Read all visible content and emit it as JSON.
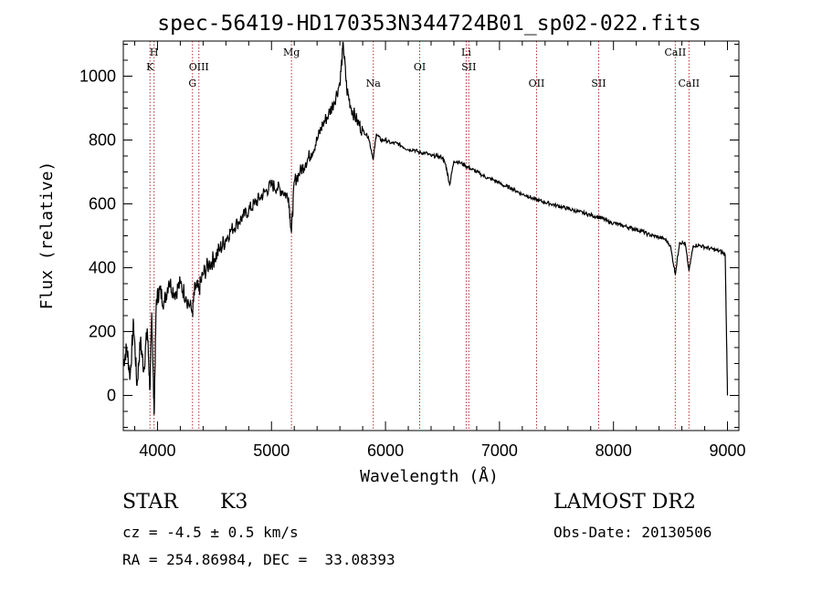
{
  "chart_data": {
    "type": "line",
    "title": "spec-56419-HD170353N344724B01_sp02-022.fits",
    "xlabel": "Wavelength (Å)",
    "ylabel": "Flux (relative)",
    "xlim": [
      3700,
      9100
    ],
    "ylim": [
      -110,
      1110
    ],
    "xticks": [
      4000,
      5000,
      6000,
      7000,
      8000,
      9000
    ],
    "yticks": [
      0,
      200,
      400,
      600,
      800,
      1000
    ],
    "grid": false,
    "line_color": "#000000",
    "marker_color": "#b03030",
    "lines": [
      {
        "label": "H",
        "x": 3970,
        "row": 0
      },
      {
        "label": "K",
        "x": 3934,
        "row": 1
      },
      {
        "label": "OIII",
        "x": 4363,
        "row": 1
      },
      {
        "label": "G",
        "x": 4307,
        "row": 2
      },
      {
        "label": "Mg",
        "x": 5175,
        "row": 0
      },
      {
        "label": "Na",
        "x": 5893,
        "row": 2
      },
      {
        "label": "OI",
        "x": 6300,
        "row": 1
      },
      {
        "label": "Li",
        "x": 6708,
        "row": 0
      },
      {
        "label": "SII",
        "x": 6731,
        "row": 1
      },
      {
        "label": "OII",
        "x": 7325,
        "row": 2
      },
      {
        "label": "SII",
        "x": 7870,
        "row": 2
      },
      {
        "label": "CaII",
        "x": 8542,
        "row": 0
      },
      {
        "label": "CaII",
        "x": 8662,
        "row": 2
      }
    ],
    "series": [
      {
        "values": [
          [
            3700,
            100
          ],
          [
            3730,
            150
          ],
          [
            3760,
            60
          ],
          [
            3790,
            230
          ],
          [
            3820,
            30
          ],
          [
            3850,
            170
          ],
          [
            3880,
            80
          ],
          [
            3910,
            210
          ],
          [
            3934,
            20
          ],
          [
            3950,
            260
          ],
          [
            3970,
            -60
          ],
          [
            3990,
            300
          ],
          [
            4020,
            330
          ],
          [
            4060,
            290
          ],
          [
            4100,
            360
          ],
          [
            4150,
            320
          ],
          [
            4200,
            350
          ],
          [
            4250,
            310
          ],
          [
            4307,
            260
          ],
          [
            4330,
            340
          ],
          [
            4363,
            330
          ],
          [
            4400,
            380
          ],
          [
            4450,
            410
          ],
          [
            4500,
            430
          ],
          [
            4550,
            460
          ],
          [
            4600,
            490
          ],
          [
            4650,
            520
          ],
          [
            4700,
            540
          ],
          [
            4750,
            560
          ],
          [
            4800,
            580
          ],
          [
            4850,
            600
          ],
          [
            4900,
            620
          ],
          [
            4950,
            640
          ],
          [
            5000,
            660
          ],
          [
            5050,
            650
          ],
          [
            5100,
            640
          ],
          [
            5150,
            620
          ],
          [
            5175,
            510
          ],
          [
            5200,
            670
          ],
          [
            5250,
            700
          ],
          [
            5300,
            730
          ],
          [
            5350,
            760
          ],
          [
            5400,
            800
          ],
          [
            5450,
            850
          ],
          [
            5500,
            880
          ],
          [
            5550,
            920
          ],
          [
            5600,
            980
          ],
          [
            5630,
            1100
          ],
          [
            5660,
            960
          ],
          [
            5700,
            900
          ],
          [
            5750,
            860
          ],
          [
            5800,
            830
          ],
          [
            5850,
            810
          ],
          [
            5893,
            740
          ],
          [
            5920,
            820
          ],
          [
            5960,
            800
          ],
          [
            6000,
            800
          ],
          [
            6050,
            790
          ],
          [
            6100,
            790
          ],
          [
            6150,
            780
          ],
          [
            6200,
            770
          ],
          [
            6250,
            770
          ],
          [
            6300,
            760
          ],
          [
            6350,
            760
          ],
          [
            6400,
            750
          ],
          [
            6450,
            750
          ],
          [
            6500,
            745
          ],
          [
            6530,
            720
          ],
          [
            6563,
            660
          ],
          [
            6600,
            735
          ],
          [
            6650,
            730
          ],
          [
            6700,
            720
          ],
          [
            6750,
            710
          ],
          [
            6800,
            700
          ],
          [
            6850,
            690
          ],
          [
            6900,
            680
          ],
          [
            6950,
            675
          ],
          [
            7000,
            665
          ],
          [
            7050,
            655
          ],
          [
            7100,
            650
          ],
          [
            7150,
            640
          ],
          [
            7200,
            630
          ],
          [
            7250,
            625
          ],
          [
            7300,
            615
          ],
          [
            7350,
            610
          ],
          [
            7400,
            605
          ],
          [
            7450,
            600
          ],
          [
            7500,
            595
          ],
          [
            7550,
            590
          ],
          [
            7600,
            585
          ],
          [
            7650,
            580
          ],
          [
            7700,
            575
          ],
          [
            7750,
            570
          ],
          [
            7800,
            565
          ],
          [
            7850,
            560
          ],
          [
            7900,
            555
          ],
          [
            7950,
            545
          ],
          [
            8000,
            540
          ],
          [
            8050,
            535
          ],
          [
            8100,
            530
          ],
          [
            8150,
            525
          ],
          [
            8200,
            520
          ],
          [
            8250,
            515
          ],
          [
            8300,
            505
          ],
          [
            8350,
            500
          ],
          [
            8400,
            495
          ],
          [
            8450,
            490
          ],
          [
            8498,
            470
          ],
          [
            8542,
            380
          ],
          [
            8580,
            480
          ],
          [
            8630,
            475
          ],
          [
            8662,
            390
          ],
          [
            8700,
            470
          ],
          [
            8750,
            470
          ],
          [
            8800,
            465
          ],
          [
            8850,
            460
          ],
          [
            8900,
            455
          ],
          [
            8950,
            450
          ],
          [
            8980,
            440
          ],
          [
            9000,
            0
          ]
        ]
      }
    ]
  },
  "info": {
    "object_class": "STAR",
    "subclass": "K3",
    "survey": "LAMOST DR2",
    "redshift": "cz = -4.5 ± 0.5 km/s",
    "obs_date": "Obs-Date: 20130506",
    "coords": "RA = 254.86984, DEC =  33.08393"
  }
}
